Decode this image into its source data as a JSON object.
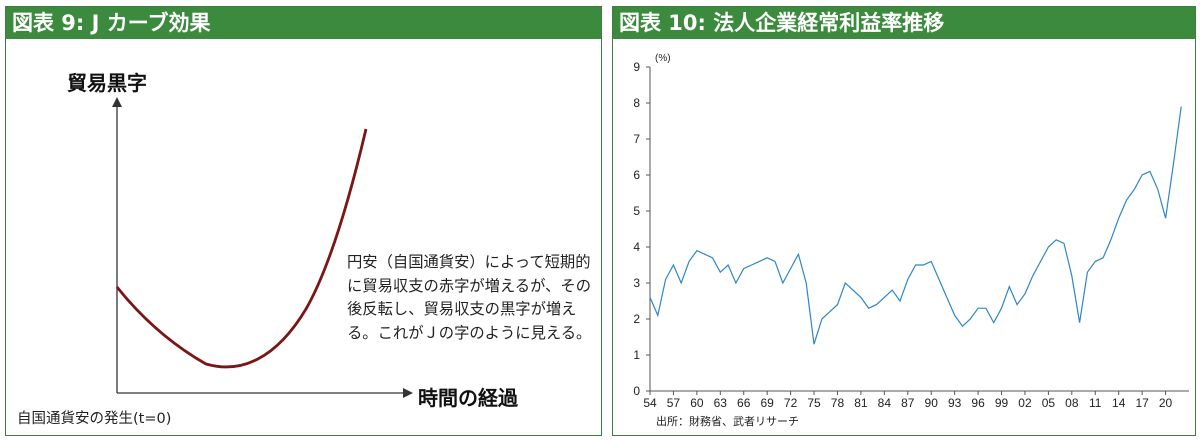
{
  "panel_left": {
    "title": "図表 9: J カーブ効果",
    "y_axis_label": "貿易黒字",
    "x_axis_label": "時間の経過",
    "annotation": "円安（自国通貨安）によって短期的に貿易収支の赤字が増えるが、その後反転し、貿易収支の黒字が増える。これがＪの字のように見える。",
    "footnote": "自国通貨安の発生(t=0)",
    "curve_color": "#7a1616"
  },
  "panel_right": {
    "title": "図表 10: 法人企業経常利益率推移",
    "source": "出所：財務省、武者リサーチ",
    "line_color": "#2e86c8"
  },
  "chart_data": [
    {
      "type": "line",
      "title": "図表 9: J カーブ効果",
      "xlabel": "時間の経過",
      "ylabel": "貿易黒字",
      "series": [
        {
          "values": [
            0.56,
            0.42,
            0.3,
            0.14,
            0.04,
            0.0,
            0.05,
            0.16,
            0.33,
            0.55,
            0.78,
            1.0
          ]
        }
      ]
    },
    {
      "type": "line",
      "title": "図表 10: 法人企業経常利益率推移",
      "y_unit": "(%)",
      "ylim": [
        0,
        9
      ],
      "x_range": [
        1954,
        2023
      ],
      "x_ticks": [
        "54",
        "57",
        "60",
        "63",
        "66",
        "69",
        "72",
        "75",
        "78",
        "81",
        "84",
        "87",
        "90",
        "93",
        "96",
        "99",
        "02",
        "05",
        "08",
        "11",
        "14",
        "17",
        "20"
      ],
      "y_ticks": [
        0,
        1,
        2,
        3,
        4,
        5,
        6,
        7,
        8,
        9
      ],
      "grid": false,
      "series": [
        {
          "x": [
            1954,
            1955,
            1956,
            1957,
            1958,
            1959,
            1960,
            1961,
            1962,
            1963,
            1964,
            1965,
            1966,
            1967,
            1968,
            1969,
            1970,
            1971,
            1972,
            1973,
            1974,
            1975,
            1976,
            1977,
            1978,
            1979,
            1980,
            1981,
            1982,
            1983,
            1984,
            1985,
            1986,
            1987,
            1988,
            1989,
            1990,
            1991,
            1992,
            1993,
            1994,
            1995,
            1996,
            1997,
            1998,
            1999,
            2000,
            2001,
            2002,
            2003,
            2004,
            2005,
            2006,
            2007,
            2008,
            2009,
            2010,
            2011,
            2012,
            2013,
            2014,
            2015,
            2016,
            2017,
            2018,
            2019,
            2020,
            2021,
            2022
          ],
          "values": [
            2.6,
            2.1,
            3.1,
            3.5,
            3.0,
            3.6,
            3.9,
            3.8,
            3.7,
            3.3,
            3.5,
            3.0,
            3.4,
            3.5,
            3.6,
            3.7,
            3.6,
            3.0,
            3.4,
            3.8,
            3.0,
            1.3,
            2.0,
            2.2,
            2.4,
            3.0,
            2.8,
            2.6,
            2.3,
            2.4,
            2.6,
            2.8,
            2.5,
            3.1,
            3.5,
            3.5,
            3.6,
            3.1,
            2.6,
            2.1,
            1.8,
            2.0,
            2.3,
            2.3,
            1.9,
            2.3,
            2.9,
            2.4,
            2.7,
            3.2,
            3.6,
            4.0,
            4.2,
            4.1,
            3.2,
            1.9,
            3.3,
            3.6,
            3.7,
            4.2,
            4.8,
            5.3,
            5.6,
            6.0,
            6.1,
            5.6,
            4.8,
            6.3,
            7.9
          ]
        }
      ]
    }
  ]
}
